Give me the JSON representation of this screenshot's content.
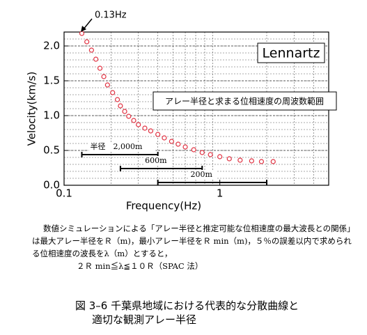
{
  "chart_data": {
    "type": "scatter",
    "x_label": "Frequency(Hz)",
    "y_label": "Velocity(km/s)",
    "x": [
      0.13,
      0.14,
      0.15,
      0.16,
      0.17,
      0.18,
      0.19,
      0.205,
      0.22,
      0.23,
      0.245,
      0.26,
      0.28,
      0.3,
      0.33,
      0.36,
      0.4,
      0.44,
      0.49,
      0.54,
      0.6,
      0.68,
      0.77,
      0.87,
      1.0,
      1.15,
      1.35,
      1.6,
      1.85,
      2.2
    ],
    "values": [
      2.18,
      2.06,
      1.94,
      1.81,
      1.68,
      1.56,
      1.44,
      1.33,
      1.23,
      1.14,
      1.06,
      0.99,
      0.93,
      0.87,
      0.82,
      0.78,
      0.73,
      0.68,
      0.63,
      0.59,
      0.55,
      0.51,
      0.47,
      0.44,
      0.41,
      0.38,
      0.36,
      0.35,
      0.34,
      0.34
    ],
    "color": "#e03040",
    "log_x": true,
    "grid": true,
    "xlim": [
      0.1,
      5
    ],
    "xticks": [
      0.1,
      1
    ],
    "ylim": [
      0,
      2.2
    ],
    "yticks": [
      {
        "value": 0,
        "label": "0.0"
      },
      0.5,
      {
        "value": 1,
        "label": "1.0"
      },
      1.5,
      {
        "value": 2,
        "label": "2.0"
      }
    ],
    "annotations": {
      "point_label": "0.13Hz",
      "instrument": "Lennartz",
      "range_note": "アレー半径と求まる位相速度の周波数範囲"
    },
    "ranges": [
      {
        "label": "半径　2,000m",
        "x": [
          0.13,
          0.4
        ]
      },
      {
        "label": "600m",
        "x": [
          0.23,
          0.77
        ]
      },
      {
        "label": "200m",
        "x": [
          0.4,
          2.0
        ]
      }
    ]
  },
  "caption": {
    "paragraph": [
      "数値シミュレーションによる「アレー半径と推定可能な位相速度の最大波長との関係」",
      "は最大アレー半径をＲ（m)，最小アレー半径をＲ min（m)，５％の誤差以内で求められ",
      "る位相速度の波長をλ（m）とすると，",
      "２Ｒ min≦λ≦１０Ｒ（SPAC 法）"
    ],
    "figure": [
      "図 3–6 千葉県地域における代表的な分散曲線と",
      "適切な観測アレー半径"
    ]
  }
}
